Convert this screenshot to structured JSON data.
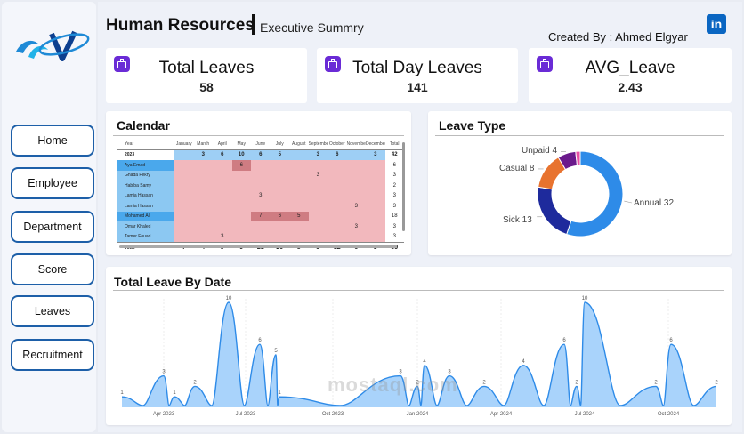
{
  "header": {
    "title": "Human Resources",
    "subtitle": "Executive Summry",
    "created_by": "Created By : Ahmed Elgyar",
    "linkedin_icon": "linkedin-icon",
    "linkedin_glyph": "in"
  },
  "nav": {
    "items": [
      {
        "label": "Home"
      },
      {
        "label": "Employee"
      },
      {
        "label": "Department"
      },
      {
        "label": "Score"
      },
      {
        "label": "Leaves"
      },
      {
        "label": "Recruitment"
      }
    ]
  },
  "kpis": [
    {
      "label": "Total Leaves",
      "value": "58"
    },
    {
      "label": "Total Day Leaves",
      "value": "141"
    },
    {
      "label": "AVG_Leave",
      "value": "2.43"
    }
  ],
  "calendar": {
    "title": "Calendar",
    "headers": [
      "Year",
      "January",
      "March",
      "April",
      "May",
      "June",
      "July",
      "August",
      "September",
      "October",
      "November",
      "December",
      "Total"
    ],
    "year_row": {
      "label": "2023",
      "values": [
        "",
        "3",
        "6",
        "10",
        "6",
        "5",
        "",
        "3",
        "6",
        "",
        "3",
        "42"
      ]
    },
    "employees": [
      {
        "name": "Aya Emad",
        "values": [
          "",
          "",
          "",
          "6",
          "",
          "",
          "",
          "",
          "",
          "",
          "",
          "6"
        ]
      },
      {
        "name": "Ghada Fekry",
        "values": [
          "",
          "",
          "",
          "",
          "",
          "",
          "",
          "3",
          "",
          "",
          "",
          "3"
        ]
      },
      {
        "name": "Habiba Samy",
        "values": [
          "",
          "",
          "",
          "",
          "",
          "",
          "",
          "",
          "",
          "",
          "",
          "2"
        ]
      },
      {
        "name": "Lamia Hassan",
        "values": [
          "",
          "",
          "",
          "",
          "3",
          "",
          "",
          "",
          "",
          "",
          "",
          "3"
        ]
      },
      {
        "name": "Lamia Hassan",
        "values": [
          "",
          "",
          "",
          "",
          "",
          "",
          "",
          "",
          "",
          "3",
          "",
          "3"
        ]
      },
      {
        "name": "Mohamed Ali",
        "values": [
          "",
          "",
          "",
          "",
          "7",
          "6",
          "5",
          "",
          "",
          "",
          "",
          "18"
        ]
      },
      {
        "name": "Omar Khaled",
        "values": [
          "",
          "",
          "",
          "",
          "",
          "",
          "",
          "",
          "",
          "3",
          "",
          "3"
        ]
      },
      {
        "name": "Tamer Fouad",
        "values": [
          "",
          "",
          "3",
          "",
          "",
          "",
          "",
          "",
          "",
          "",
          "",
          "3"
        ]
      }
    ],
    "total_row": {
      "label": "Total",
      "values": [
        "7",
        "4",
        "9",
        "9",
        "21",
        "20",
        "5",
        "3",
        "12",
        "6",
        "3",
        "99"
      ]
    }
  },
  "leave_type": {
    "title": "Leave Type",
    "chart_data": {
      "type": "pie",
      "variant": "donut",
      "categories": [
        "Annual",
        "Sick",
        "Casual",
        "Unpaid",
        "Other"
      ],
      "values": [
        32,
        13,
        8,
        4,
        1
      ],
      "labels": [
        "Annual 32",
        "Sick 13",
        "Casual 8",
        "Unpaid 4",
        ""
      ],
      "colors": [
        "#2e8be8",
        "#1e2a9c",
        "#e8732f",
        "#6b1a8c",
        "#e84fa4"
      ]
    }
  },
  "leave_by_date": {
    "title": "Total Leave By Date",
    "chart_data": {
      "type": "area",
      "x_ticks": [
        "Apr 2023",
        "Jul 2023",
        "Oct 2023",
        "Jan 2024",
        "Apr 2024",
        "Jul 2024",
        "Oct 2024"
      ],
      "y_range": [
        0,
        10
      ],
      "color": "#2e8be8",
      "fill": "#a9d3fb",
      "points": [
        {
          "label": "1",
          "value": 1
        },
        {
          "label": "3",
          "value": 3
        },
        {
          "label": "1",
          "value": 1
        },
        {
          "label": "2",
          "value": 2
        },
        {
          "label": "10",
          "value": 10
        },
        {
          "label": "6",
          "value": 6
        },
        {
          "label": "5",
          "value": 5
        },
        {
          "label": "1",
          "value": 1
        },
        {
          "label": "3",
          "value": 3
        },
        {
          "label": "2",
          "value": 2
        },
        {
          "label": "4",
          "value": 4
        },
        {
          "label": "3",
          "value": 3
        },
        {
          "label": "2",
          "value": 2
        },
        {
          "label": "4",
          "value": 4
        },
        {
          "label": "6",
          "value": 6
        },
        {
          "label": "2",
          "value": 2
        },
        {
          "label": "10",
          "value": 10
        },
        {
          "label": "2",
          "value": 2
        },
        {
          "label": "6",
          "value": 6
        },
        {
          "label": "2",
          "value": 2
        }
      ]
    }
  },
  "watermark": "mostaql.com"
}
